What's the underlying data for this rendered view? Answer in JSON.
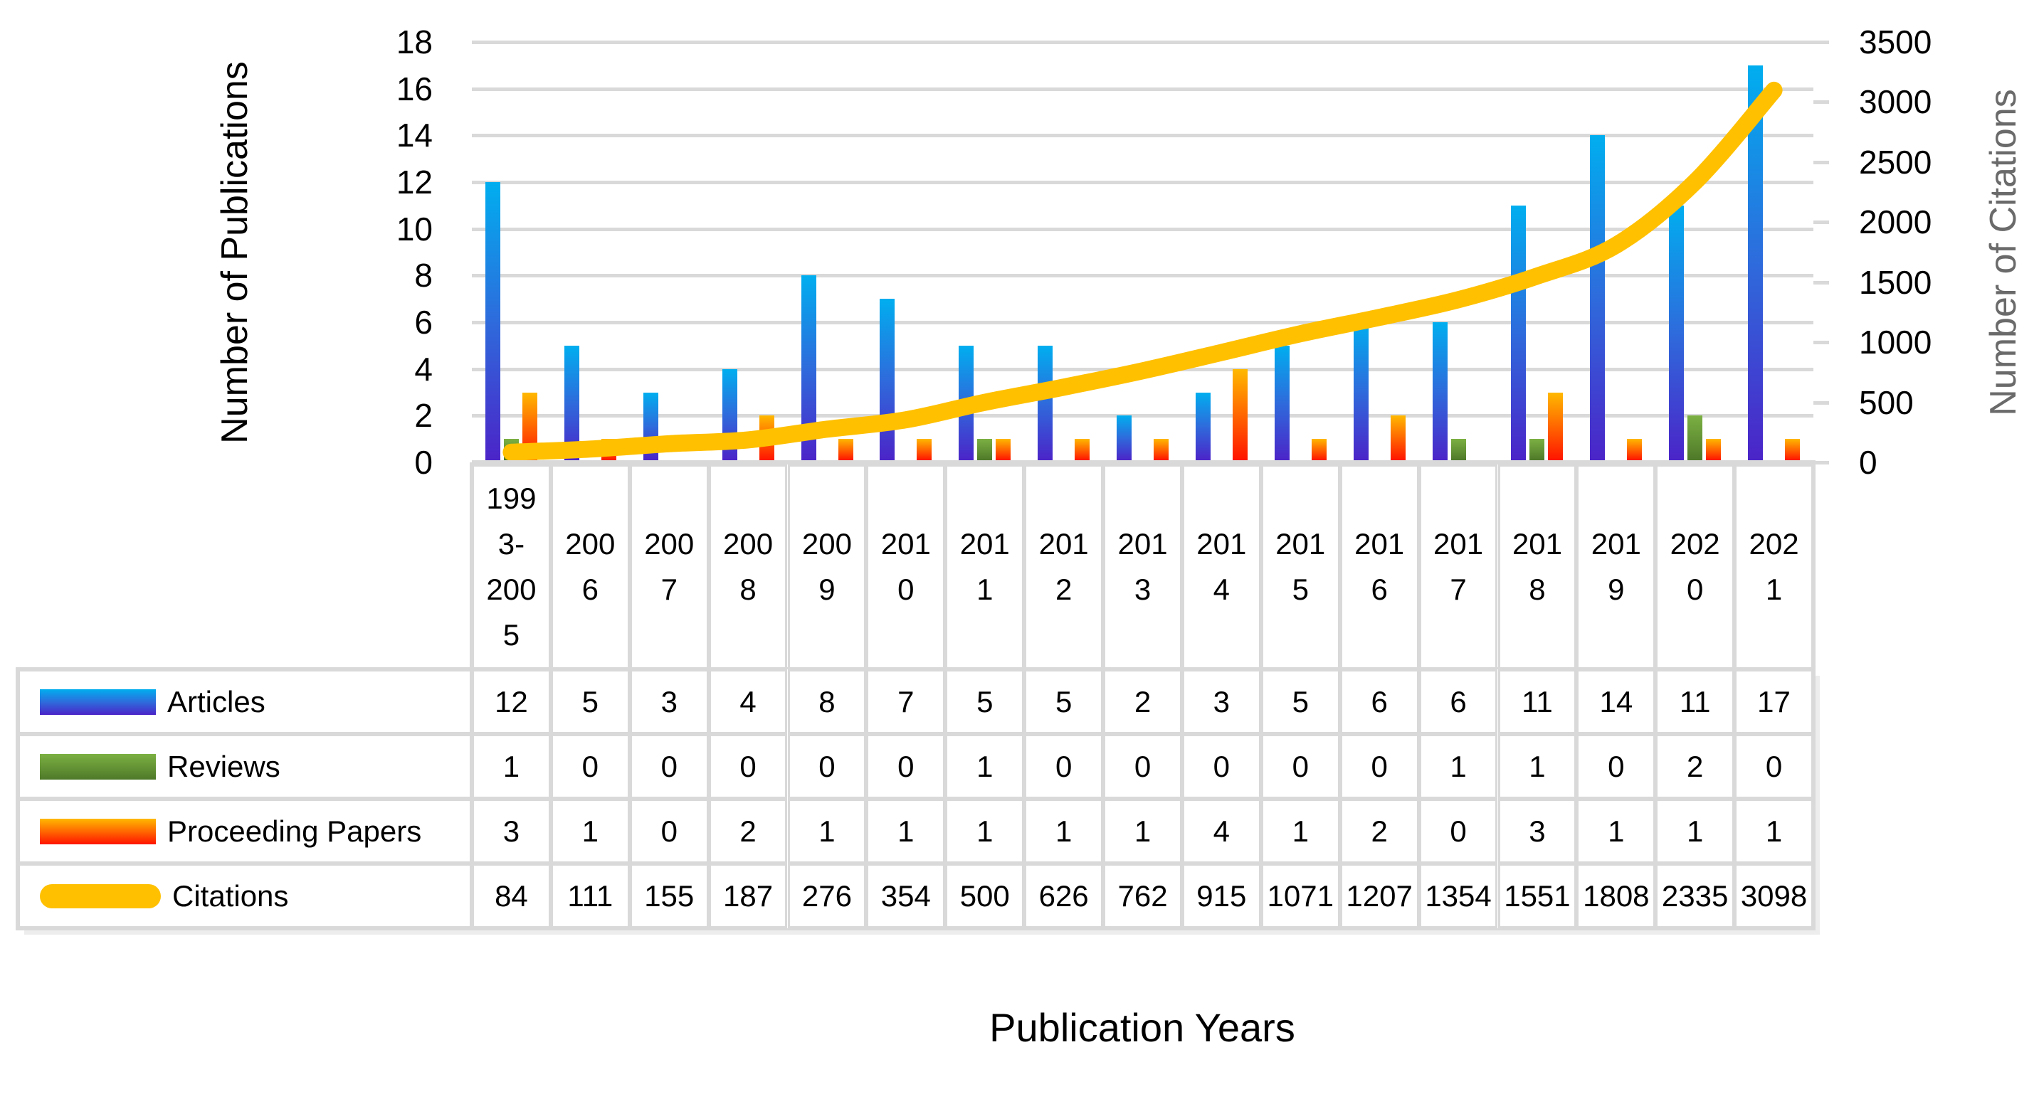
{
  "chart_data": {
    "type": "combo: clustered bar + smoothed line, dual y-axes, with data table legend",
    "x_axis": {
      "title": "Publication Years"
    },
    "left_axis": {
      "title": "Number of Publications",
      "min": 0,
      "max": 18,
      "step": 2,
      "tick_labels": [
        "0",
        "2",
        "4",
        "6",
        "8",
        "10",
        "12",
        "14",
        "16",
        "18"
      ]
    },
    "right_axis": {
      "title": "Number of Citations",
      "min": 0,
      "max": 3500,
      "step": 500,
      "tick_labels": [
        "0",
        "500",
        "1000",
        "1500",
        "2000",
        "2500",
        "3000",
        "3500"
      ]
    },
    "categories": [
      "1993-2005",
      "2006",
      "2007",
      "2008",
      "2009",
      "2010",
      "2011",
      "2012",
      "2013",
      "2014",
      "2015",
      "2016",
      "2017",
      "2018",
      "2019",
      "2020",
      "2021"
    ],
    "category_label_lines": [
      [
        "199",
        "3-",
        "200",
        "5"
      ],
      [
        "200",
        "6"
      ],
      [
        "200",
        "7"
      ],
      [
        "200",
        "8"
      ],
      [
        "200",
        "9"
      ],
      [
        "201",
        "0"
      ],
      [
        "201",
        "1"
      ],
      [
        "201",
        "2"
      ],
      [
        "201",
        "3"
      ],
      [
        "201",
        "4"
      ],
      [
        "201",
        "5"
      ],
      [
        "201",
        "6"
      ],
      [
        "201",
        "7"
      ],
      [
        "201",
        "8"
      ],
      [
        "201",
        "9"
      ],
      [
        "202",
        "0"
      ],
      [
        "202",
        "1"
      ]
    ],
    "series": [
      {
        "name": "Articles",
        "type": "bar",
        "axis": "left",
        "gradient": [
          "#00AEEF",
          "#2E6BDC",
          "#4B24C8"
        ],
        "values": [
          12,
          5,
          3,
          4,
          8,
          7,
          5,
          5,
          2,
          3,
          5,
          6,
          6,
          11,
          14,
          11,
          17
        ]
      },
      {
        "name": "Reviews",
        "type": "bar",
        "axis": "left",
        "gradient": [
          "#7CB043",
          "#4E7929"
        ],
        "values": [
          1,
          0,
          0,
          0,
          0,
          0,
          1,
          0,
          0,
          0,
          0,
          0,
          1,
          1,
          0,
          2,
          0
        ]
      },
      {
        "name": "Proceeding Papers",
        "type": "bar",
        "axis": "left",
        "gradient": [
          "#FFB900",
          "#FF1400"
        ],
        "values": [
          3,
          1,
          0,
          2,
          1,
          1,
          1,
          1,
          1,
          4,
          1,
          2,
          0,
          3,
          1,
          1,
          1
        ]
      },
      {
        "name": "Citations",
        "type": "line",
        "axis": "right",
        "color": "#FFC000",
        "values": [
          84,
          111,
          155,
          187,
          276,
          354,
          500,
          626,
          762,
          915,
          1071,
          1207,
          1354,
          1551,
          1808,
          2335,
          3098
        ]
      }
    ],
    "grid": true,
    "legend_position": "left column of data table"
  },
  "colors": {
    "background": "#FFFFFF",
    "gridline": "#D9D9D9",
    "axis_line": "#D9D9D9",
    "table_border": "#D9D9D9",
    "left_axis_text": "#000000",
    "right_axis_title": "#6A6A6A",
    "citations_line": "#FFC000"
  }
}
